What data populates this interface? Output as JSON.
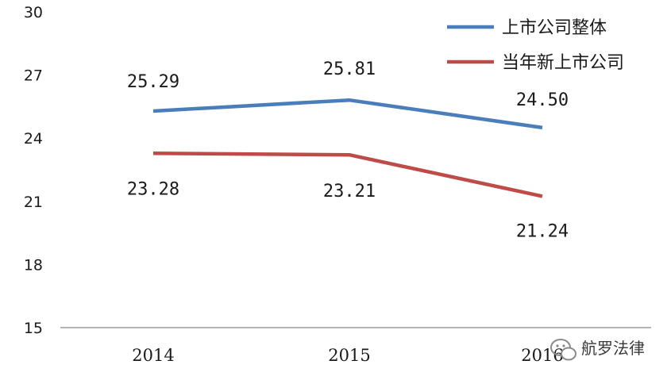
{
  "chart_data": {
    "type": "line",
    "categories": [
      "2014",
      "2015",
      "2016"
    ],
    "ylim": [
      15,
      30
    ],
    "yticks": [
      15,
      18,
      21,
      24,
      27,
      30
    ],
    "grid": false,
    "legend_position": "top-right",
    "series": [
      {
        "name": "上市公司整体",
        "color": "#4a7ebb",
        "values": [
          25.29,
          25.81,
          24.5
        ],
        "labels": [
          "25.29",
          "25.81",
          "24.50"
        ]
      },
      {
        "name": "当年新上市公司",
        "color": "#be4b48",
        "values": [
          23.28,
          23.21,
          21.24
        ],
        "labels": [
          "23.28",
          "23.21",
          "21.24"
        ]
      }
    ]
  },
  "watermark": {
    "text": "航罗法律",
    "icon": "wechat-icon"
  }
}
